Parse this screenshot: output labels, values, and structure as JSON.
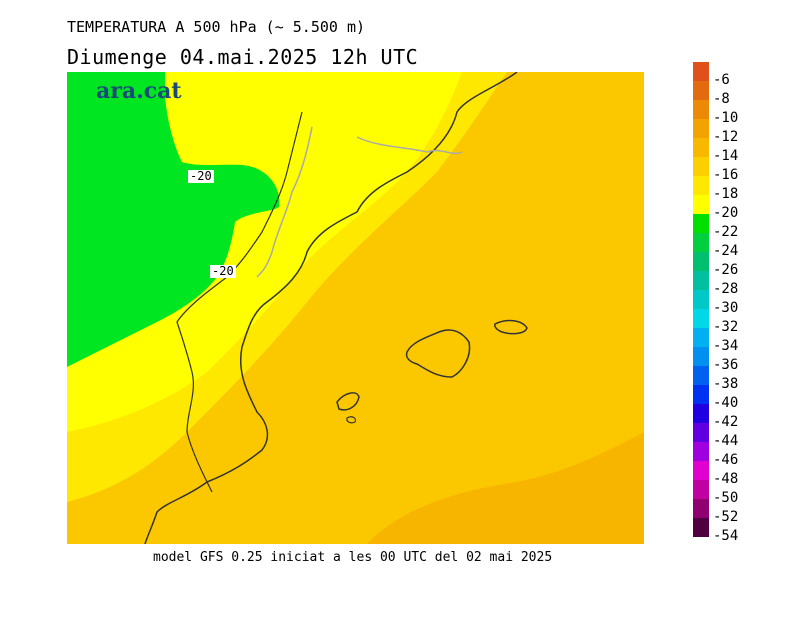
{
  "header": {
    "title": "TEMPERATURA A 500 hPa (~ 5.500 m)",
    "subtitle": "Diumenge  04.mai.2025 12h UTC"
  },
  "footer": {
    "text": "model GFS 0.25 iniciat a les 00 UTC del 02 mai 2025"
  },
  "brand": {
    "text": "ara.cat"
  },
  "contour_labels": [
    "-20",
    "-20"
  ],
  "legend": {
    "steps": [
      {
        "label": "-6",
        "color": "#e0501a"
      },
      {
        "label": "-8",
        "color": "#e46a10"
      },
      {
        "label": "-10",
        "color": "#ec8a08"
      },
      {
        "label": "-12",
        "color": "#f3a300"
      },
      {
        "label": "-14",
        "color": "#f8b800"
      },
      {
        "label": "-16",
        "color": "#fcd000"
      },
      {
        "label": "-18",
        "color": "#ffe800"
      },
      {
        "label": "-20",
        "color": "#ffff00"
      },
      {
        "label": "-22",
        "color": "#00e000"
      },
      {
        "label": "-24",
        "color": "#00d040"
      },
      {
        "label": "-26",
        "color": "#00c070"
      },
      {
        "label": "-28",
        "color": "#00c0a0"
      },
      {
        "label": "-30",
        "color": "#00c8c8"
      },
      {
        "label": "-32",
        "color": "#00d8e8"
      },
      {
        "label": "-34",
        "color": "#00b0f0"
      },
      {
        "label": "-36",
        "color": "#0090f0"
      },
      {
        "label": "-38",
        "color": "#0060f0"
      },
      {
        "label": "-40",
        "color": "#0030f0"
      },
      {
        "label": "-42",
        "color": "#2000e0"
      },
      {
        "label": "-44",
        "color": "#6000e0"
      },
      {
        "label": "-46",
        "color": "#a000e0"
      },
      {
        "label": "-48",
        "color": "#e000d0"
      },
      {
        "label": "-50",
        "color": "#c000a0"
      },
      {
        "label": "-52",
        "color": "#900070"
      },
      {
        "label": "-54",
        "color": "#500040"
      }
    ]
  },
  "colors": {
    "green_zone": "#00e620",
    "yellow_zone": "#ffff00",
    "light_yellow": "#fff000",
    "orange_zone": "#fbc800",
    "deep_orange": "#f8b500",
    "coast_line": "#333333",
    "border_line": "#aaaaaa"
  }
}
